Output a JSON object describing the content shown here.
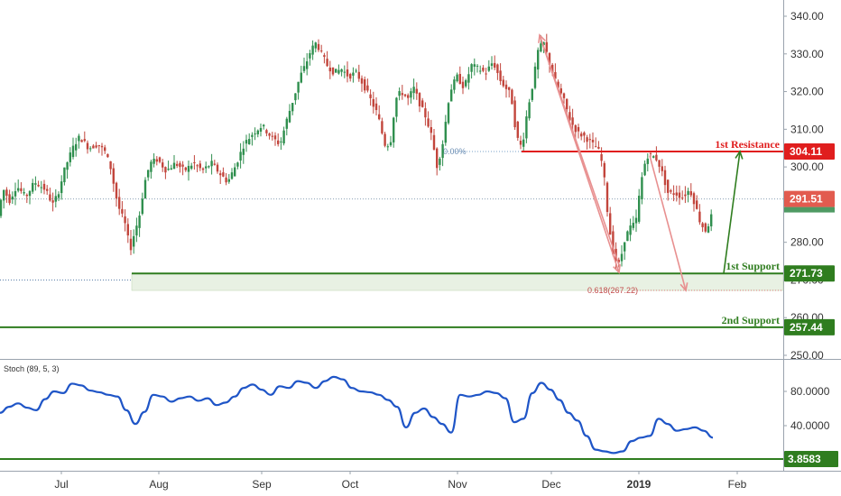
{
  "chart_data": [
    {
      "type": "candlestick",
      "panel": "price",
      "y_ticks": [
        "340.00",
        "330.00",
        "320.00",
        "310.00",
        "300.00",
        "280.00",
        "270.00",
        "260.00",
        "250.00"
      ],
      "ylim": [
        247,
        344
      ],
      "x_ticks": [
        "Jul",
        "Aug",
        "Sep",
        "Oct",
        "Nov",
        "Dec",
        "2019",
        "Feb"
      ],
      "current_price": "291.51",
      "levels": [
        {
          "name": "1st Resistance",
          "value": 304.11,
          "label": "304.11",
          "color": "#e01e1e"
        },
        {
          "name": "1st Support",
          "value": 271.73,
          "label": "271.73",
          "color": "#2f7d1f"
        },
        {
          "name": "2nd Support",
          "value": 257.44,
          "label": "257.44",
          "color": "#2f7d1f"
        }
      ],
      "fib_labels": {
        "top": "0.00%",
        "bottom": "0.618(267.22)"
      },
      "fib_bottom_value": 267.22,
      "support_zone": [
        267.22,
        271.73
      ]
    },
    {
      "type": "line",
      "panel": "indicator",
      "indicator_label": "Stoch (89, 5, 3)",
      "y_ticks": [
        "80.0000",
        "40.0000"
      ],
      "ylim": [
        -5,
        110
      ],
      "level": {
        "value": 3.8583,
        "label": "3.8583",
        "color": "#2f7d1f"
      },
      "series_color": "#1f55c7",
      "series": [
        {
          "x": [
            0,
            10,
            20,
            30,
            40,
            50,
            60,
            70,
            80,
            90,
            100,
            110,
            120,
            130,
            140,
            150,
            160,
            170,
            180,
            190,
            200,
            210,
            220,
            230,
            240,
            250,
            260,
            270,
            280,
            290,
            300,
            310,
            320,
            330,
            340,
            350,
            360,
            370,
            380,
            390,
            400,
            410,
            420,
            430,
            440,
            450,
            460,
            470,
            480,
            490,
            500,
            510,
            520,
            530,
            540,
            550,
            560,
            570,
            580,
            590,
            600,
            610,
            620,
            630,
            640,
            650,
            660,
            670,
            680,
            690,
            700,
            710,
            720,
            730,
            740,
            750,
            760,
            770,
            780,
            790
          ],
          "y": [
            55,
            62,
            66,
            61,
            58,
            71,
            80,
            78,
            89,
            87,
            81,
            79,
            76,
            74,
            58,
            42,
            56,
            76,
            74,
            68,
            72,
            74,
            69,
            72,
            64,
            67,
            74,
            84,
            88,
            82,
            76,
            86,
            84,
            92,
            90,
            84,
            92,
            97,
            94,
            84,
            80,
            79,
            76,
            70,
            62,
            38,
            55,
            60,
            50,
            42,
            32,
            76,
            74,
            76,
            80,
            78,
            72,
            44,
            48,
            78,
            90,
            82,
            70,
            55,
            46,
            28,
            12,
            10,
            8,
            10,
            22,
            26,
            28,
            48,
            42,
            34,
            36,
            38,
            34,
            26
          ]
        }
      ]
    }
  ]
}
